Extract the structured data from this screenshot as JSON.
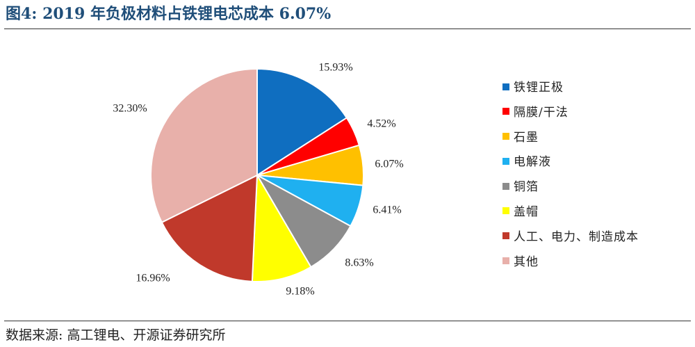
{
  "title": "图4: 2019 年负极材料占铁锂电芯成本 6.07%",
  "source": "数据来源: 高工锂电、开源证券研究所",
  "chart_data": {
    "type": "pie",
    "labels": [
      "铁锂正极",
      "隔膜/干法",
      "石墨",
      "电解液",
      "铜箔",
      "盖帽",
      "人工、电力、制造成本",
      "其他"
    ],
    "values": [
      15.93,
      4.52,
      6.07,
      6.41,
      8.63,
      9.18,
      16.96,
      32.3
    ],
    "data_labels": [
      "15.93%",
      "4.52%",
      "6.07%",
      "6.41%",
      "8.63%",
      "9.18%",
      "16.96%",
      "32.30%"
    ],
    "colors": [
      "#0f6ec0",
      "#ff0000",
      "#ffc000",
      "#1fb0f0",
      "#8c8c8c",
      "#ffff00",
      "#c0392b",
      "#e8b0aa"
    ],
    "start_angle": "12 o'clock",
    "direction": "clockwise",
    "legend_position": "right"
  }
}
